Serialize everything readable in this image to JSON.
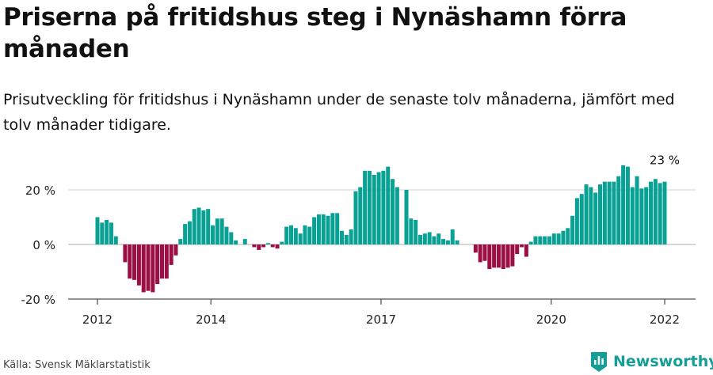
{
  "title": "Priserna på fritidshus steg i Nynäshamn förra månaden",
  "subtitle": "Prisutveckling för fritidshus i Nynäshamn under de senaste tolv månaderna, jämfört med tolv månader tidigare.",
  "source": "Källa: Svensk Mäklarstatistik",
  "brand": "Newsworthy",
  "colors": {
    "positive": "#0aa195",
    "negative": "#9b0f45",
    "brand": "#149e96"
  },
  "chart_data": {
    "type": "bar",
    "unit": "%",
    "ylim": [
      -20,
      30
    ],
    "yticks": [
      {
        "value": 20,
        "label": "20 %"
      },
      {
        "value": 0,
        "label": "0 %"
      },
      {
        "value": -20,
        "label": "-20 %"
      }
    ],
    "xticks": [
      {
        "value": 2012,
        "label": "2012"
      },
      {
        "value": 2014,
        "label": "2014"
      },
      {
        "value": 2017,
        "label": "2017"
      },
      {
        "value": 2020,
        "label": "2020"
      },
      {
        "value": 2022,
        "label": "2022"
      }
    ],
    "grid": true,
    "last_label": "23 %",
    "start": "2012-01",
    "end": "2022-01",
    "values": [
      10,
      8,
      9,
      8,
      3,
      null,
      -6.5,
      -12.5,
      -13,
      -15,
      -17.5,
      -17,
      -17.5,
      -14.5,
      -12.5,
      -12.5,
      -7.5,
      -4,
      2,
      7.5,
      8.5,
      13,
      13.5,
      12.5,
      13,
      7,
      9.5,
      9.5,
      6.5,
      4.5,
      1.5,
      null,
      2,
      null,
      -1,
      -2,
      -1,
      0.5,
      -1,
      -1.5,
      1,
      6.5,
      7,
      6,
      4,
      7,
      6.5,
      10,
      11,
      11,
      10.5,
      11.5,
      11.5,
      5,
      3.5,
      5.5,
      19.5,
      21,
      27,
      27,
      25.5,
      26.5,
      27,
      28.5,
      24,
      21,
      null,
      20,
      9.5,
      9,
      3.5,
      4,
      4.5,
      3,
      4,
      2,
      1.5,
      5.5,
      1.5,
      null,
      null,
      null,
      -3,
      -6.5,
      -6,
      -9,
      -8.5,
      -8.5,
      -9,
      -8.5,
      -8,
      -3.5,
      -1,
      -4.5,
      1,
      3,
      3,
      3,
      3,
      4,
      4,
      5,
      6,
      10.5,
      17,
      18.5,
      22,
      21,
      19,
      22,
      23,
      23,
      23,
      25,
      29,
      28.5,
      21,
      25,
      20.5,
      21,
      23,
      24,
      22.5,
      23
    ]
  }
}
